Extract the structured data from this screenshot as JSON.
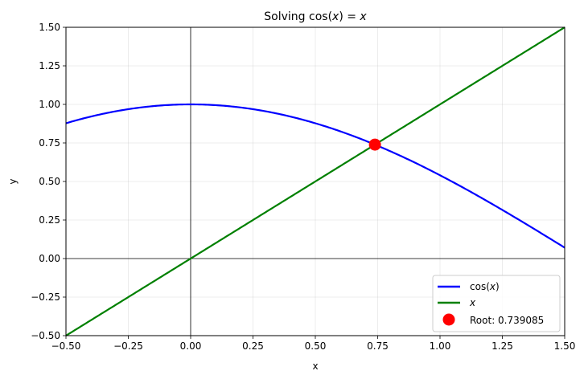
{
  "chart_data": {
    "type": "line",
    "title": "Solving cos(x) = x",
    "title_parts": {
      "prefix": "Solving cos(",
      "var1": "x",
      "middle": ") = ",
      "var2": "x"
    },
    "xlabel": "x",
    "ylabel": "y",
    "xlim": [
      -0.5,
      1.5
    ],
    "ylim": [
      -0.5,
      1.5
    ],
    "grid": true,
    "legend_position": "lower right",
    "xticks": [
      -0.5,
      -0.25,
      0.0,
      0.25,
      0.5,
      0.75,
      1.0,
      1.25,
      1.5
    ],
    "xtick_labels": [
      "−0.50",
      "−0.25",
      "0.00",
      "0.25",
      "0.50",
      "0.75",
      "1.00",
      "1.25",
      "1.50"
    ],
    "yticks": [
      -0.5,
      -0.25,
      0.0,
      0.25,
      0.5,
      0.75,
      1.0,
      1.25,
      1.5
    ],
    "ytick_labels": [
      "−0.50",
      "−0.25",
      "0.00",
      "0.25",
      "0.50",
      "0.75",
      "1.00",
      "1.25",
      "1.50"
    ],
    "series": [
      {
        "name": "cos(x)",
        "function": "cos",
        "color": "#0000ff",
        "style": "line"
      },
      {
        "name": "x",
        "function": "identity",
        "color": "#008000",
        "style": "line"
      },
      {
        "name": "Root: 0.739085",
        "color": "#ff0000",
        "style": "marker",
        "x": [
          0.739085
        ],
        "y": [
          0.739085
        ]
      }
    ],
    "reference_lines": {
      "hline_y": 0,
      "vline_x": 0,
      "color": "#000000"
    }
  },
  "legend": {
    "items": [
      {
        "label_prefix": "cos(",
        "label_var": "x",
        "label_suffix": ")",
        "color": "#0000ff"
      },
      {
        "label_var": "x",
        "color": "#008000"
      },
      {
        "label": "Root: 0.739085",
        "color": "#ff0000"
      }
    ]
  }
}
